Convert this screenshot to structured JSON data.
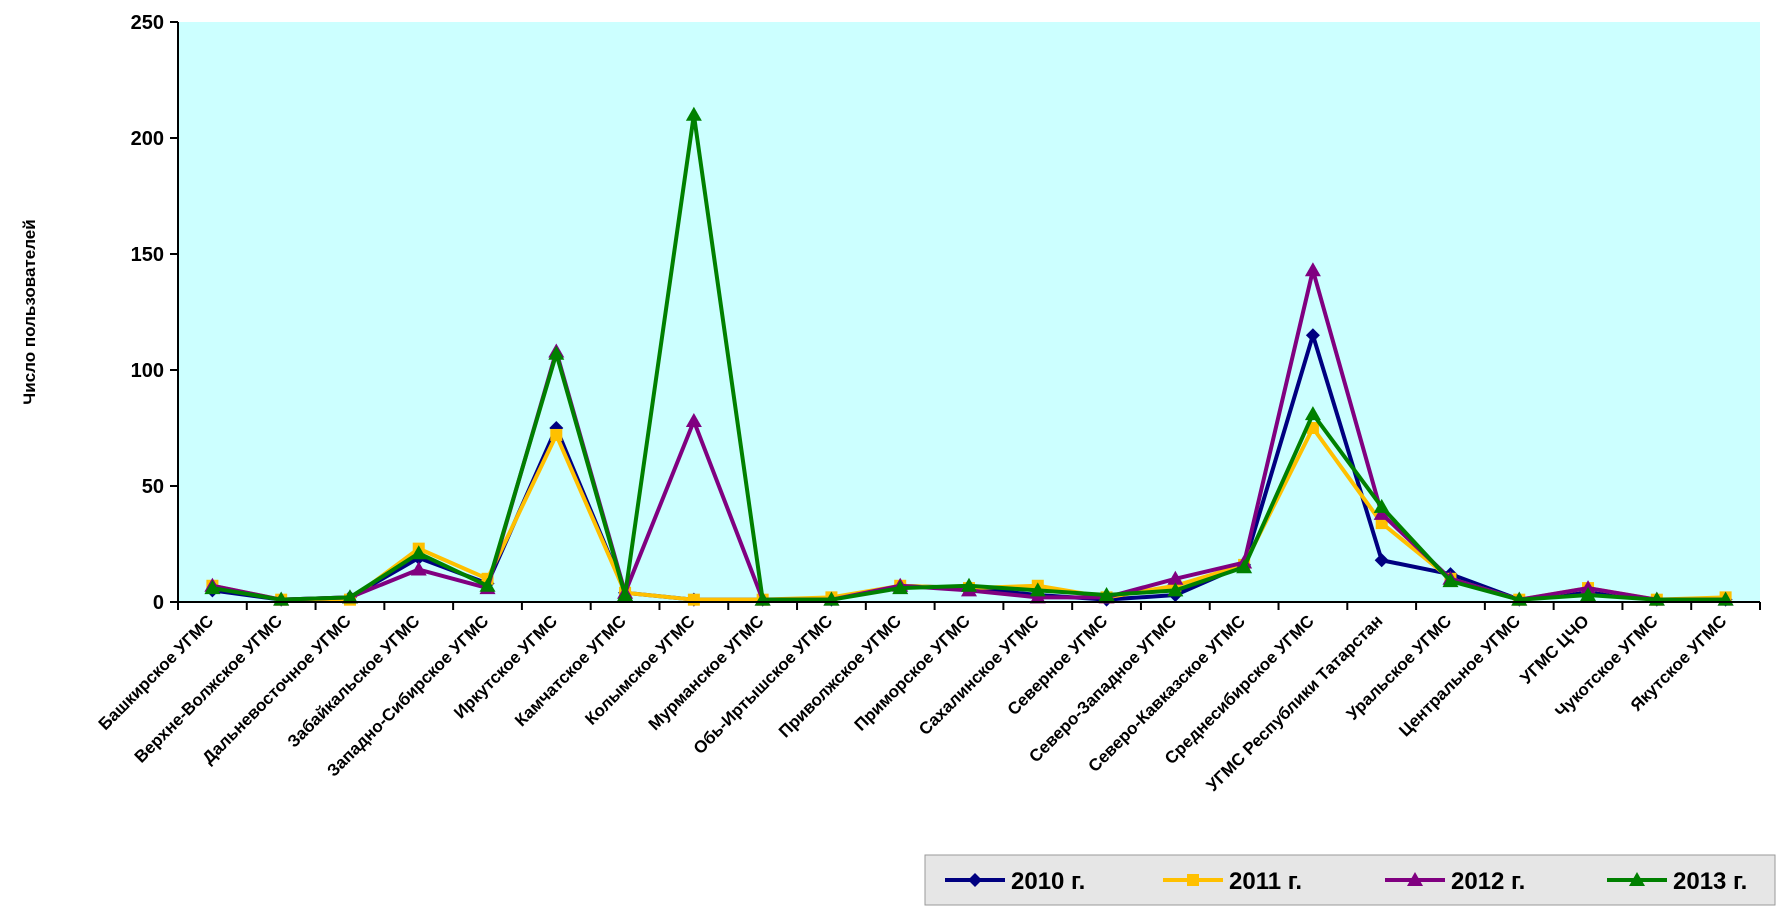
{
  "chart_data": {
    "type": "line",
    "title": "",
    "xlabel": "",
    "ylabel": "Число пользователей",
    "ylim": [
      0,
      250
    ],
    "yticks": [
      0,
      50,
      100,
      150,
      200,
      250
    ],
    "grid": false,
    "plot_background": "#ccffff",
    "legend_position": "bottom-right",
    "categories": [
      "Башкирское УГМС",
      "Верхне-Волжское УГМС",
      "Дальневосточное УГМС",
      "Забайкальское УГМС",
      "Западно-Сибирское УГМС",
      "Иркутское УГМС",
      "Камчатское УГМС",
      "Колымское УГМС",
      "Мурманское УГМС",
      "Обь-Иртышское УГМС",
      "Приволжское УГМС",
      "Приморское УГМС",
      "Сахалинское УГМС",
      "Северное УГМС",
      "Северо-Западное УГМС",
      "Северо-Кавказское УГМС",
      "Среднесибирское УГМС",
      "УГМС Республики Татарстан",
      "Уральское УГМС",
      "Центральное УГМС",
      "УГМС ЦЧО",
      "Чукотское УГМС",
      "Якутское УГМС"
    ],
    "series": [
      {
        "name": "2010 г.",
        "color": "#000080",
        "marker": "diamond",
        "values": [
          5,
          1,
          2,
          19,
          8,
          75,
          4,
          1,
          1,
          1,
          7,
          6,
          3,
          1,
          3,
          16,
          115,
          18,
          12,
          1,
          4,
          1,
          1
        ]
      },
      {
        "name": "2011 г.",
        "color": "#ffc000",
        "marker": "square",
        "values": [
          7,
          1,
          1,
          23,
          10,
          72,
          4,
          1,
          1,
          2,
          7,
          6,
          7,
          2,
          7,
          16,
          75,
          34,
          10,
          1,
          6,
          1,
          2
        ]
      },
      {
        "name": "2012 г.",
        "color": "#800080",
        "marker": "triangle",
        "values": [
          7,
          1,
          2,
          14,
          6,
          108,
          4,
          78,
          1,
          1,
          7,
          5,
          2,
          2,
          10,
          17,
          143,
          38,
          10,
          1,
          6,
          1,
          1
        ]
      },
      {
        "name": "2013 г.",
        "color": "#008000",
        "marker": "triangle",
        "values": [
          6,
          1,
          2,
          21,
          7,
          107,
          3,
          210,
          1,
          1,
          6,
          7,
          5,
          3,
          5,
          15,
          81,
          41,
          9,
          1,
          3,
          1,
          1
        ]
      }
    ]
  }
}
